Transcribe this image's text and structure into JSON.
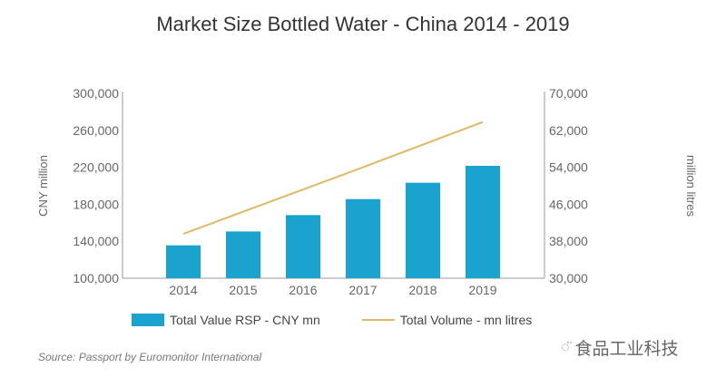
{
  "chart_data": {
    "type": "bar",
    "title": "Market Size Bottled Water - China 2014 - 2019",
    "categories": [
      "2014",
      "2015",
      "2016",
      "2017",
      "2018",
      "2019"
    ],
    "series": [
      {
        "name": "Total Value RSP - CNY mn",
        "type": "bar",
        "axis": "left",
        "color": "#1aa3cf",
        "values": [
          135600,
          150600,
          168300,
          185600,
          203300,
          221600
        ]
      },
      {
        "name": "Total Volume - mn litres",
        "type": "line",
        "axis": "right",
        "color": "#e0b865",
        "values": [
          39600,
          44400,
          49200,
          54000,
          58900,
          63800
        ]
      }
    ],
    "ylabel": "CNY million",
    "y2label": "million litres",
    "ylim": [
      100000,
      300000
    ],
    "y2lim": [
      30000,
      70000
    ],
    "yticks": [
      "100,000",
      "140,000",
      "180,000",
      "220,000",
      "260,000",
      "300,000"
    ],
    "y2ticks": [
      "30,000",
      "38,000",
      "46,000",
      "54,000",
      "62,000",
      "70,000"
    ],
    "grid": false,
    "legend": "bottom"
  },
  "source": "Source: Passport by Euromonitor International",
  "watermark": {
    "icon": "wechat-icon",
    "text": "食品工业科技"
  }
}
